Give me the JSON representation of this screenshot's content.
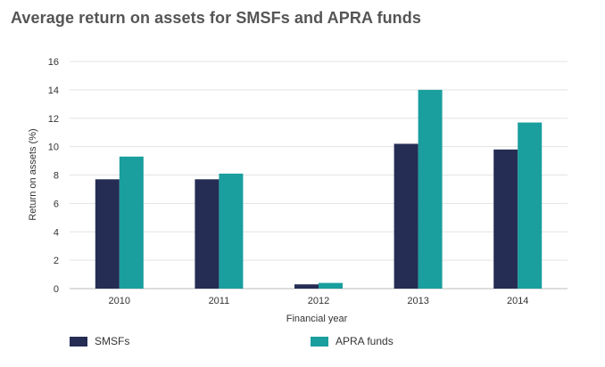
{
  "title": "Average return on assets for SMSFs and APRA funds",
  "chart_data": {
    "type": "bar",
    "categories": [
      "2010",
      "2011",
      "2012",
      "2013",
      "2014"
    ],
    "series": [
      {
        "name": "SMSFs",
        "color": "#252d54",
        "values": [
          7.7,
          7.7,
          0.3,
          10.2,
          9.8
        ]
      },
      {
        "name": "APRA funds",
        "color": "#1a9e9e",
        "values": [
          9.3,
          8.1,
          0.4,
          14.0,
          11.7
        ]
      }
    ],
    "xlabel": "Financial year",
    "ylabel": "Return on assets (%)",
    "ylim": [
      0,
      16
    ],
    "yticks": [
      0,
      2,
      4,
      6,
      8,
      10,
      12,
      14,
      16
    ],
    "grid": true,
    "legend_position": "bottom"
  }
}
